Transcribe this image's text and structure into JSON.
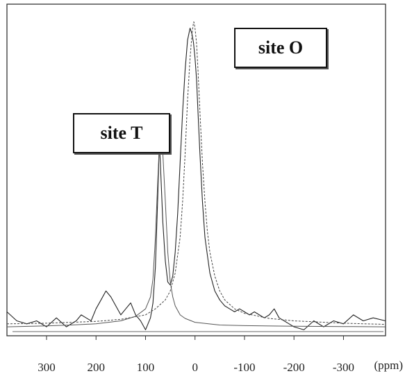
{
  "chart_data": {
    "type": "line",
    "title": "",
    "xlabel": "",
    "ylabel": "",
    "x_unit_label": "(ppm)",
    "x_reversed": true,
    "xlim": [
      380,
      -385
    ],
    "ylim": [
      -0.03,
      1.08
    ],
    "x_ticks": [
      300,
      200,
      100,
      0,
      -100,
      -200,
      -300
    ],
    "x_tick_labels": [
      "300",
      "200",
      "100",
      "0",
      "-100",
      "-200",
      "-300"
    ],
    "grid": false,
    "legend": "none",
    "annotations": [
      {
        "text": "site T",
        "peak_ppm": 68
      },
      {
        "text": "site O",
        "peak_ppm": 2
      }
    ],
    "series": [
      {
        "role": "experimental",
        "x": [
          380,
          360,
          340,
          320,
          300,
          280,
          260,
          240,
          230,
          220,
          210,
          200,
          190,
          180,
          170,
          160,
          150,
          140,
          130,
          120,
          110,
          100,
          90,
          85,
          80,
          75,
          72,
          70,
          65,
          60,
          55,
          50,
          45,
          40,
          35,
          30,
          25,
          20,
          15,
          10,
          6,
          3,
          0,
          -3,
          -6,
          -10,
          -15,
          -20,
          -25,
          -30,
          -40,
          -50,
          -60,
          -70,
          -80,
          -90,
          -100,
          -110,
          -120,
          -130,
          -140,
          -150,
          -160,
          -170,
          -180,
          -190,
          -200,
          -220,
          -240,
          -260,
          -280,
          -300,
          -320,
          -340,
          -360,
          -385
        ],
        "y": [
          0.05,
          0.02,
          0.01,
          0.02,
          0.0,
          0.03,
          0.0,
          0.02,
          0.04,
          0.03,
          0.02,
          0.06,
          0.09,
          0.12,
          0.1,
          0.07,
          0.04,
          0.06,
          0.08,
          0.04,
          0.02,
          -0.01,
          0.03,
          0.08,
          0.2,
          0.45,
          0.62,
          0.55,
          0.35,
          0.22,
          0.15,
          0.14,
          0.17,
          0.25,
          0.38,
          0.55,
          0.72,
          0.86,
          0.96,
          1.0,
          0.98,
          0.95,
          0.9,
          0.83,
          0.72,
          0.58,
          0.42,
          0.3,
          0.24,
          0.18,
          0.12,
          0.09,
          0.07,
          0.06,
          0.05,
          0.06,
          0.05,
          0.04,
          0.05,
          0.04,
          0.03,
          0.04,
          0.06,
          0.03,
          0.02,
          0.01,
          0.0,
          -0.01,
          0.02,
          0.0,
          0.02,
          0.01,
          0.04,
          0.02,
          0.03,
          0.02
        ]
      },
      {
        "role": "fit site T",
        "x": [
          380,
          300,
          250,
          200,
          150,
          120,
          100,
          90,
          85,
          80,
          75,
          72,
          70,
          68,
          65,
          60,
          55,
          50,
          45,
          40,
          30,
          20,
          0,
          -50,
          -100,
          -200,
          -300,
          -385
        ],
        "y": [
          0.0,
          0.003,
          0.006,
          0.01,
          0.02,
          0.035,
          0.06,
          0.1,
          0.16,
          0.3,
          0.5,
          0.61,
          0.63,
          0.63,
          0.58,
          0.42,
          0.25,
          0.15,
          0.1,
          0.07,
          0.04,
          0.028,
          0.015,
          0.006,
          0.004,
          0.002,
          0.001,
          0.0
        ]
      },
      {
        "role": "fit site O",
        "x": [
          380,
          300,
          200,
          150,
          100,
          80,
          60,
          50,
          40,
          30,
          25,
          20,
          15,
          10,
          6,
          3,
          2,
          0,
          -3,
          -6,
          -10,
          -15,
          -20,
          -25,
          -30,
          -40,
          -50,
          -60,
          -80,
          -100,
          -150,
          -200,
          -300,
          -385
        ],
        "y": [
          0.01,
          0.012,
          0.018,
          0.025,
          0.04,
          0.06,
          0.09,
          0.12,
          0.18,
          0.3,
          0.42,
          0.58,
          0.76,
          0.9,
          0.98,
          1.02,
          1.02,
          1.0,
          0.95,
          0.86,
          0.72,
          0.55,
          0.42,
          0.32,
          0.25,
          0.17,
          0.12,
          0.09,
          0.06,
          0.045,
          0.028,
          0.02,
          0.012,
          0.008
        ]
      }
    ]
  }
}
